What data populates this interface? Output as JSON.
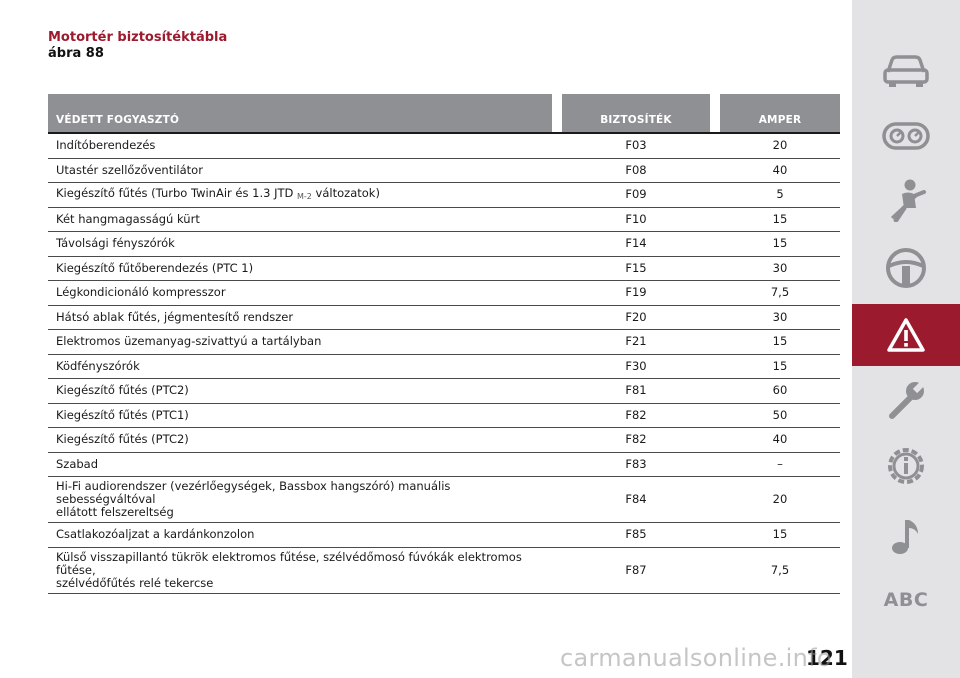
{
  "heading": {
    "title": "Motortér biztosítéktábla",
    "subtitle": "ábra 88"
  },
  "table": {
    "headers": {
      "consumer": "VÉDETT FOGYASZTÓ",
      "fuse": "BIZTOSÍTÉK",
      "amp": "AMPER"
    },
    "rows": [
      {
        "consumer": "Indítóberendezés",
        "fuse": "F03",
        "amp": "20"
      },
      {
        "consumer": "Utastér szellőzőventilátor",
        "fuse": "F08",
        "amp": "40"
      },
      {
        "consumer": "Kiegészítő fűtés (Turbo TwinAir és 1.3 JTD",
        "consumer_sub": "M-2",
        "consumer_after": " változatok)",
        "fuse": "F09",
        "amp": "5"
      },
      {
        "consumer": "Két hangmagasságú kürt",
        "fuse": "F10",
        "amp": "15"
      },
      {
        "consumer": "Távolsági fényszórók",
        "fuse": "F14",
        "amp": "15"
      },
      {
        "consumer": "Kiegészítő fűtőberendezés (PTC 1)",
        "fuse": "F15",
        "amp": "30"
      },
      {
        "consumer": "Légkondicionáló kompresszor",
        "fuse": "F19",
        "amp": "7,5"
      },
      {
        "consumer": "Hátsó ablak fűtés, jégmentesítő rendszer",
        "fuse": "F20",
        "amp": "30"
      },
      {
        "consumer": "Elektromos üzemanyag-szivattyú a tartályban",
        "fuse": "F21",
        "amp": "15"
      },
      {
        "consumer": "Ködfényszórók",
        "fuse": "F30",
        "amp": "15"
      },
      {
        "consumer": "Kiegészítő fűtés (PTC2)",
        "fuse": "F81",
        "amp": "60"
      },
      {
        "consumer": "Kiegészítő fűtés (PTC1)",
        "fuse": "F82",
        "amp": "50"
      },
      {
        "consumer": "Kiegészítő fűtés (PTC2)",
        "fuse": "F82",
        "amp": "40"
      },
      {
        "consumer": "Szabad",
        "fuse": "F83",
        "amp": "–"
      },
      {
        "consumer": "Hi-Fi audiorendszer (vezérlőegységek, Bassbox hangszóró) manuális sebességváltóval",
        "consumer_line2": "ellátott felszereltség",
        "fuse": "F84",
        "amp": "20"
      },
      {
        "consumer": "Csatlakozóaljzat a kardánkonzolon",
        "fuse": "F85",
        "amp": "15"
      },
      {
        "consumer": "Külső visszapillantó tükrök elektromos fűtése, szélvédőmosó fúvókák elektromos fűtése,",
        "consumer_line2": "szélvédőfűtés relé tekercse",
        "fuse": "F87",
        "amp": "7,5"
      }
    ]
  },
  "sidebar": {
    "items": [
      {
        "icon": "car-icon"
      },
      {
        "icon": "dashboard-gauges-icon"
      },
      {
        "icon": "seatbelt-passenger-icon"
      },
      {
        "icon": "steering-wheel-icon"
      },
      {
        "icon": "warning-triangle-icon",
        "active": true
      },
      {
        "icon": "wrench-icon"
      },
      {
        "icon": "gear-info-icon"
      },
      {
        "icon": "music-note-icon"
      },
      {
        "label": "ABC"
      }
    ],
    "accent": "#9c1a2e",
    "background": "#e3e3e5",
    "icon_color": "#8f9094"
  },
  "page_number": "121",
  "watermark": "carmanualsonline.info"
}
